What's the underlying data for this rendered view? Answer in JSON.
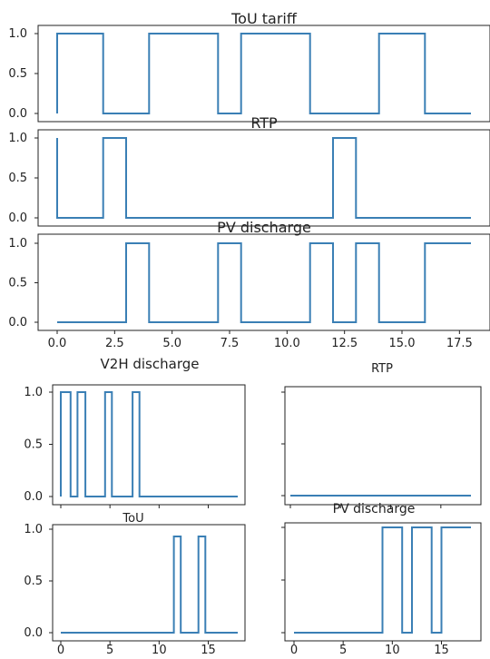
{
  "figure_labels": {
    "top_titles": [
      "ToU tariff",
      "RTP",
      "PV discharge"
    ],
    "bottom_caption_left": "V2H discharge",
    "bottom_caption_right": "RTP",
    "bottom_titles": [
      "ToU",
      "PV discharge"
    ]
  },
  "colors": {
    "line": "#3a7fb5",
    "axes": "#222222"
  },
  "chart_data": [
    {
      "type": "line",
      "step": true,
      "title": "ToU tariff",
      "xlim": [
        0,
        18
      ],
      "ylim": [
        0,
        1
      ],
      "y_ticks": [
        "0.0",
        "0.5",
        "1.0"
      ],
      "x": [
        0,
        0,
        2,
        2,
        4,
        4,
        7,
        7,
        8,
        8,
        11,
        11,
        14,
        14,
        16,
        16,
        18
      ],
      "y": [
        0,
        1,
        1,
        0,
        0,
        1,
        1,
        0,
        0,
        1,
        1,
        0,
        0,
        1,
        1,
        0,
        0
      ]
    },
    {
      "type": "line",
      "step": true,
      "title": "RTP",
      "xlim": [
        0,
        18
      ],
      "ylim": [
        0,
        1
      ],
      "y_ticks": [
        "0.0",
        "0.5",
        "1.0"
      ],
      "x": [
        0,
        0,
        2,
        2,
        3,
        3,
        12,
        12,
        13,
        13,
        18
      ],
      "y": [
        1,
        0,
        0,
        1,
        1,
        0,
        0,
        1,
        1,
        0,
        0
      ]
    },
    {
      "type": "line",
      "step": true,
      "title": "PV discharge",
      "xlim": [
        0,
        18
      ],
      "ylim": [
        0,
        1
      ],
      "y_ticks": [
        "0.0",
        "0.5",
        "1.0"
      ],
      "x_ticks": [
        "0.0",
        "2.5",
        "5.0",
        "7.5",
        "10.0",
        "12.5",
        "15.0",
        "17.5"
      ],
      "x": [
        0,
        3,
        3,
        4,
        4,
        7,
        7,
        8,
        8,
        11,
        11,
        12,
        12,
        13,
        13,
        14,
        14,
        16,
        16,
        18
      ],
      "y": [
        0,
        0,
        1,
        1,
        0,
        0,
        1,
        1,
        0,
        0,
        1,
        1,
        0,
        0,
        1,
        1,
        0,
        0,
        1,
        1
      ]
    },
    {
      "type": "line",
      "step": true,
      "caption": "V2H discharge",
      "xlim": [
        0,
        18
      ],
      "ylim": [
        0,
        1
      ],
      "y_ticks": [
        "0.0",
        "0.5",
        "1.0"
      ],
      "x": [
        0,
        0,
        1,
        1,
        1.7,
        1.7,
        2.5,
        2.5,
        4.5,
        4.5,
        5.2,
        5.2,
        7.3,
        7.3,
        8.0,
        8.0,
        18
      ],
      "y": [
        0,
        1,
        1,
        0,
        0,
        1,
        1,
        0,
        0,
        1,
        1,
        0,
        0,
        1,
        1,
        0,
        0
      ]
    },
    {
      "type": "line",
      "step": true,
      "caption": "RTP",
      "xlim": [
        0,
        18
      ],
      "ylim": [
        0,
        1
      ],
      "x": [
        0,
        18
      ],
      "y": [
        0,
        0
      ]
    },
    {
      "type": "line",
      "step": true,
      "title": "ToU",
      "xlim": [
        0,
        18
      ],
      "ylim": [
        0,
        1
      ],
      "y_ticks": [
        "0.0",
        "0.5",
        "1.0"
      ],
      "x_ticks": [
        "0",
        "5",
        "10",
        "15"
      ],
      "x": [
        0,
        11.5,
        11.5,
        12.2,
        12.2,
        14.0,
        14.0,
        14.7,
        14.7,
        18
      ],
      "y": [
        0,
        0,
        0.93,
        0.93,
        0,
        0,
        0.93,
        0.93,
        0,
        0
      ]
    },
    {
      "type": "line",
      "step": true,
      "title": "PV discharge",
      "xlim": [
        0,
        18
      ],
      "ylim": [
        0,
        1
      ],
      "x_ticks": [
        "0",
        "5",
        "10",
        "15"
      ],
      "x": [
        0,
        9,
        9,
        11,
        11,
        12,
        12,
        14,
        14,
        15,
        15,
        18
      ],
      "y": [
        0,
        0,
        1,
        1,
        0,
        0,
        1,
        1,
        0,
        0,
        1,
        1
      ]
    }
  ]
}
